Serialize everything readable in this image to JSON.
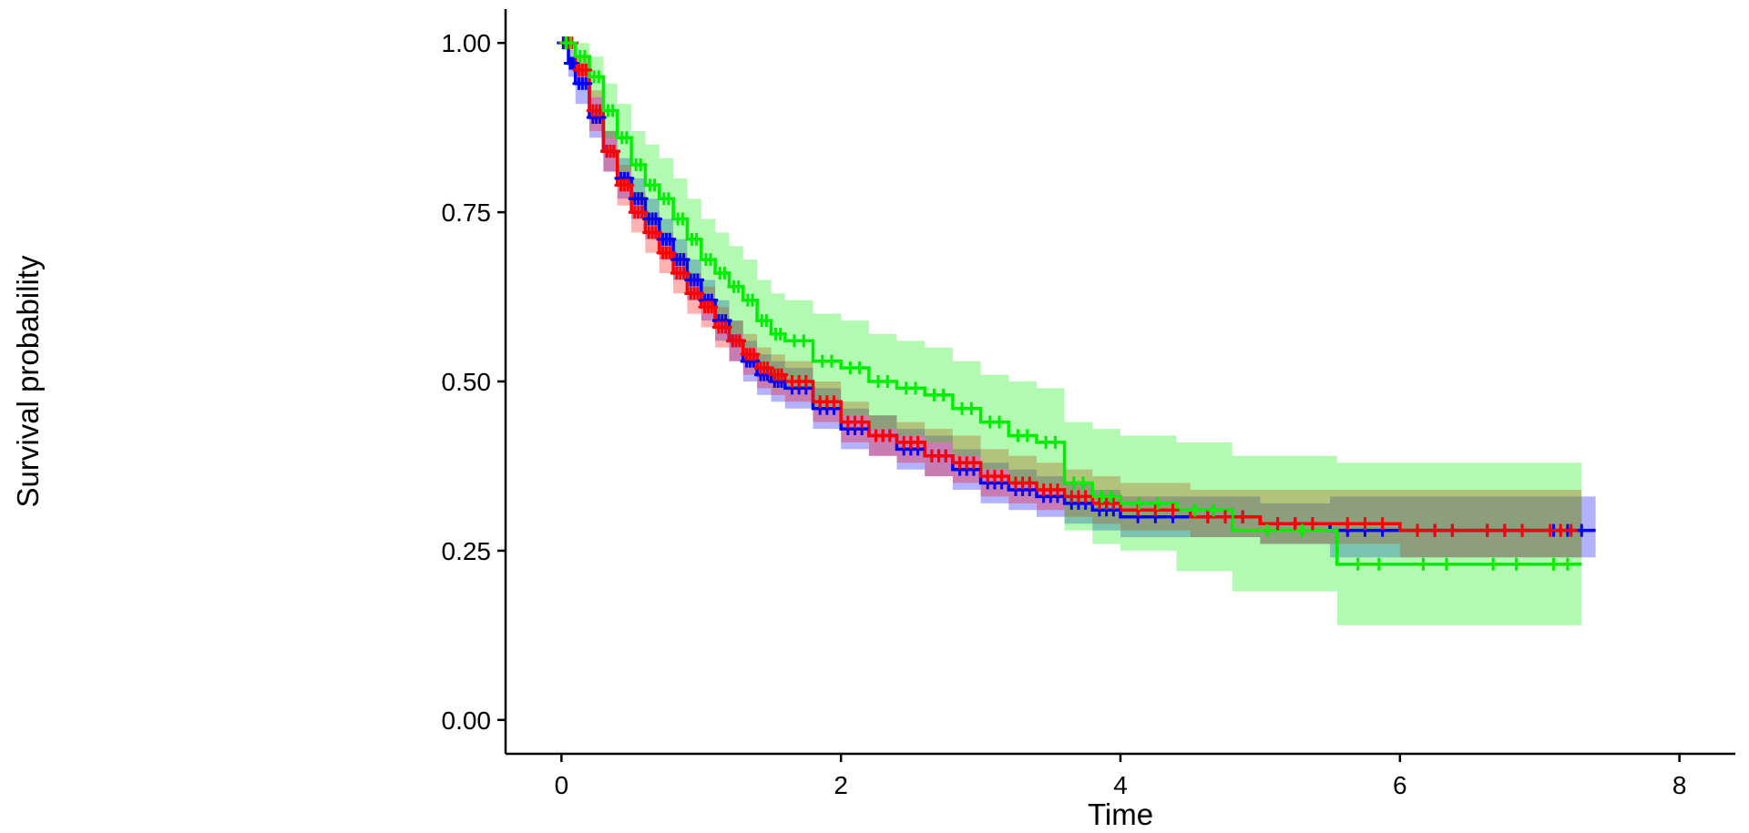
{
  "chart_data": {
    "type": "line",
    "subtype": "kaplan-meier",
    "title": "",
    "xlabel": "Time",
    "ylabel": "Survival probability",
    "xlim": [
      -0.4,
      8.4
    ],
    "ylim": [
      -0.05,
      1.05
    ],
    "x_ticks": [
      0,
      2,
      4,
      6,
      8
    ],
    "y_ticks": [
      0.0,
      0.25,
      0.5,
      0.75,
      1.0
    ],
    "y_tick_labels": [
      "0.00",
      "0.25",
      "0.50",
      "0.75",
      "1.00"
    ],
    "grid": false,
    "legend": "none",
    "series": [
      {
        "color": "#0000ff",
        "x": [
          0,
          0.05,
          0.1,
          0.2,
          0.3,
          0.4,
          0.5,
          0.6,
          0.7,
          0.8,
          0.9,
          1.0,
          1.1,
          1.2,
          1.3,
          1.4,
          1.5,
          1.6,
          1.8,
          2.0,
          2.2,
          2.4,
          2.6,
          2.8,
          3.0,
          3.2,
          3.4,
          3.6,
          3.8,
          4.0,
          4.5,
          5.0,
          5.5,
          6.0,
          6.5,
          7.0,
          7.4
        ],
        "y": [
          1.0,
          0.97,
          0.94,
          0.89,
          0.84,
          0.8,
          0.77,
          0.74,
          0.71,
          0.68,
          0.65,
          0.62,
          0.59,
          0.56,
          0.53,
          0.51,
          0.5,
          0.49,
          0.46,
          0.43,
          0.42,
          0.4,
          0.39,
          0.37,
          0.35,
          0.34,
          0.33,
          0.32,
          0.31,
          0.3,
          0.3,
          0.29,
          0.28,
          0.28,
          0.28,
          0.28,
          0.28
        ],
        "ci_lower": [
          1.0,
          0.95,
          0.91,
          0.86,
          0.81,
          0.77,
          0.74,
          0.71,
          0.68,
          0.65,
          0.62,
          0.59,
          0.56,
          0.53,
          0.5,
          0.48,
          0.47,
          0.46,
          0.43,
          0.4,
          0.39,
          0.37,
          0.36,
          0.34,
          0.32,
          0.31,
          0.3,
          0.29,
          0.28,
          0.27,
          0.27,
          0.26,
          0.24,
          0.24,
          0.24,
          0.24,
          0.24
        ],
        "ci_upper": [
          1.0,
          0.99,
          0.97,
          0.92,
          0.87,
          0.83,
          0.8,
          0.77,
          0.74,
          0.71,
          0.68,
          0.65,
          0.62,
          0.59,
          0.56,
          0.54,
          0.53,
          0.52,
          0.49,
          0.46,
          0.45,
          0.43,
          0.42,
          0.4,
          0.38,
          0.37,
          0.36,
          0.35,
          0.34,
          0.33,
          0.33,
          0.32,
          0.33,
          0.33,
          0.33,
          0.33,
          0.33
        ]
      },
      {
        "color": "#ff0000",
        "x": [
          0,
          0.1,
          0.2,
          0.3,
          0.4,
          0.5,
          0.6,
          0.7,
          0.8,
          0.9,
          1.0,
          1.1,
          1.2,
          1.3,
          1.4,
          1.5,
          1.6,
          1.8,
          2.0,
          2.2,
          2.4,
          2.6,
          2.8,
          3.0,
          3.2,
          3.4,
          3.6,
          3.8,
          4.0,
          4.5,
          5.0,
          5.5,
          6.0,
          6.5,
          7.0,
          7.3
        ],
        "y": [
          1.0,
          0.96,
          0.9,
          0.84,
          0.79,
          0.75,
          0.72,
          0.69,
          0.66,
          0.63,
          0.61,
          0.58,
          0.56,
          0.54,
          0.52,
          0.51,
          0.5,
          0.47,
          0.44,
          0.42,
          0.41,
          0.39,
          0.38,
          0.36,
          0.35,
          0.34,
          0.33,
          0.32,
          0.31,
          0.3,
          0.29,
          0.29,
          0.28,
          0.28,
          0.28,
          0.28
        ],
        "ci_lower": [
          1.0,
          0.94,
          0.87,
          0.81,
          0.76,
          0.72,
          0.69,
          0.66,
          0.63,
          0.6,
          0.58,
          0.55,
          0.53,
          0.51,
          0.49,
          0.48,
          0.47,
          0.44,
          0.41,
          0.39,
          0.38,
          0.36,
          0.35,
          0.33,
          0.32,
          0.31,
          0.3,
          0.29,
          0.28,
          0.27,
          0.26,
          0.26,
          0.24,
          0.24,
          0.24,
          0.24
        ],
        "ci_upper": [
          1.0,
          0.98,
          0.93,
          0.87,
          0.82,
          0.78,
          0.75,
          0.72,
          0.69,
          0.66,
          0.64,
          0.61,
          0.59,
          0.57,
          0.55,
          0.54,
          0.53,
          0.5,
          0.47,
          0.45,
          0.44,
          0.43,
          0.42,
          0.4,
          0.39,
          0.38,
          0.37,
          0.36,
          0.35,
          0.34,
          0.34,
          0.34,
          0.34,
          0.34,
          0.34,
          0.34
        ]
      },
      {
        "color": "#00ee00",
        "x": [
          0,
          0.1,
          0.2,
          0.3,
          0.4,
          0.5,
          0.6,
          0.7,
          0.8,
          0.9,
          1.0,
          1.1,
          1.2,
          1.3,
          1.4,
          1.5,
          1.6,
          1.8,
          2.0,
          2.2,
          2.4,
          2.6,
          2.8,
          3.0,
          3.2,
          3.4,
          3.6,
          3.8,
          4.0,
          4.4,
          4.8,
          5.55,
          6.0,
          6.5,
          7.0,
          7.3
        ],
        "y": [
          1.0,
          0.98,
          0.95,
          0.9,
          0.86,
          0.82,
          0.79,
          0.77,
          0.74,
          0.71,
          0.68,
          0.66,
          0.64,
          0.62,
          0.59,
          0.57,
          0.56,
          0.53,
          0.52,
          0.5,
          0.49,
          0.48,
          0.46,
          0.44,
          0.42,
          0.41,
          0.35,
          0.33,
          0.32,
          0.31,
          0.28,
          0.23,
          0.23,
          0.23,
          0.23,
          0.23
        ],
        "ci_lower": [
          1.0,
          0.96,
          0.92,
          0.86,
          0.81,
          0.77,
          0.73,
          0.71,
          0.68,
          0.65,
          0.62,
          0.59,
          0.57,
          0.55,
          0.52,
          0.5,
          0.49,
          0.46,
          0.45,
          0.43,
          0.42,
          0.41,
          0.39,
          0.37,
          0.35,
          0.34,
          0.28,
          0.26,
          0.25,
          0.22,
          0.19,
          0.14,
          0.14,
          0.14,
          0.14,
          0.14
        ],
        "ci_upper": [
          1.0,
          1.0,
          0.98,
          0.94,
          0.91,
          0.87,
          0.85,
          0.83,
          0.8,
          0.77,
          0.74,
          0.72,
          0.7,
          0.68,
          0.65,
          0.63,
          0.62,
          0.6,
          0.59,
          0.57,
          0.56,
          0.55,
          0.53,
          0.51,
          0.5,
          0.49,
          0.44,
          0.43,
          0.42,
          0.41,
          0.39,
          0.38,
          0.38,
          0.38,
          0.38,
          0.38
        ]
      }
    ]
  }
}
